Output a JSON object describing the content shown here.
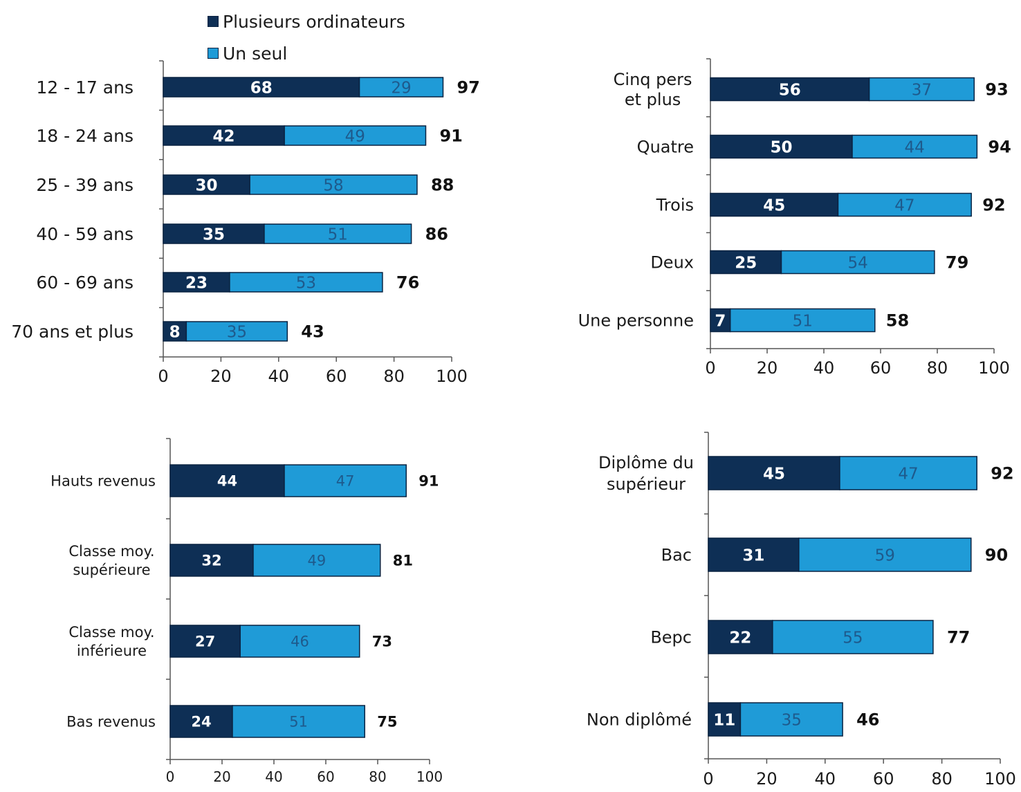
{
  "legend": {
    "items": [
      {
        "label": "Plusieurs ordinateurs",
        "color": "#0e2f55"
      },
      {
        "label": "Un seul",
        "color": "#1f9bd7"
      }
    ]
  },
  "chart_data": [
    {
      "type": "bar",
      "orientation": "horizontal",
      "stacked": true,
      "categories": [
        "12 - 17 ans",
        "18 - 24 ans",
        "25 - 39 ans",
        "40 - 59 ans",
        "60 - 69 ans",
        "70 ans et plus"
      ],
      "series": [
        {
          "name": "Plusieurs ordinateurs",
          "values": [
            68,
            42,
            30,
            35,
            23,
            8
          ]
        },
        {
          "name": "Un seul",
          "values": [
            29,
            49,
            58,
            51,
            53,
            35
          ]
        }
      ],
      "totals": [
        97,
        91,
        88,
        86,
        76,
        43
      ],
      "xlim": [
        0,
        100
      ],
      "xticks": [
        0,
        20,
        40,
        60,
        80,
        100
      ]
    },
    {
      "type": "bar",
      "orientation": "horizontal",
      "stacked": true,
      "categories": [
        "Cinq pers et plus",
        "Quatre",
        "Trois",
        "Deux",
        "Une personne"
      ],
      "series": [
        {
          "name": "Plusieurs ordinateurs",
          "values": [
            56,
            50,
            45,
            25,
            7
          ]
        },
        {
          "name": "Un seul",
          "values": [
            37,
            44,
            47,
            54,
            51
          ]
        }
      ],
      "totals": [
        93,
        94,
        92,
        79,
        58
      ],
      "xlim": [
        0,
        100
      ],
      "xticks": [
        0,
        20,
        40,
        60,
        80,
        100
      ]
    },
    {
      "type": "bar",
      "orientation": "horizontal",
      "stacked": true,
      "categories": [
        "Hauts revenus",
        "Classe moy. supérieure",
        "Classe moy. inférieure",
        "Bas revenus"
      ],
      "series": [
        {
          "name": "Plusieurs ordinateurs",
          "values": [
            44,
            32,
            27,
            24
          ]
        },
        {
          "name": "Un seul",
          "values": [
            47,
            49,
            46,
            51
          ]
        }
      ],
      "totals": [
        91,
        81,
        73,
        75
      ],
      "xlim": [
        0,
        100
      ],
      "xticks": [
        0,
        20,
        40,
        60,
        80,
        100
      ]
    },
    {
      "type": "bar",
      "orientation": "horizontal",
      "stacked": true,
      "categories": [
        "Diplôme du supérieur",
        "Bac",
        "Bepc",
        "Non diplômé"
      ],
      "series": [
        {
          "name": "Plusieurs ordinateurs",
          "values": [
            45,
            31,
            22,
            11
          ]
        },
        {
          "name": "Un seul",
          "values": [
            47,
            59,
            55,
            35
          ]
        }
      ],
      "totals": [
        92,
        90,
        77,
        46
      ],
      "xlim": [
        0,
        100
      ],
      "xticks": [
        0,
        20,
        40,
        60,
        80,
        100
      ]
    }
  ]
}
